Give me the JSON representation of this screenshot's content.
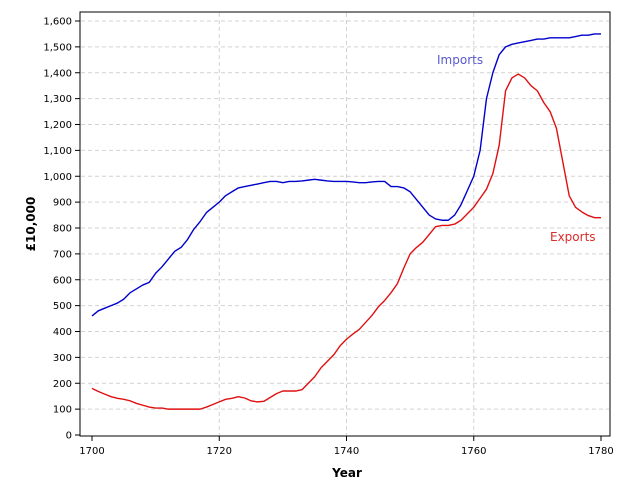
{
  "chart_data": {
    "type": "line",
    "title": "",
    "xlabel": "Year",
    "ylabel": "£10,000",
    "xlim": [
      1700,
      1780
    ],
    "ylim": [
      0,
      1600
    ],
    "xticks": [
      1700,
      1720,
      1740,
      1760,
      1780
    ],
    "yticks": [
      0,
      100,
      200,
      300,
      400,
      500,
      600,
      700,
      800,
      900,
      1000,
      1100,
      1200,
      1300,
      1400,
      1500,
      1600
    ],
    "xtick_labels": [
      "1700",
      "1720",
      "1740",
      "1760",
      "1780"
    ],
    "ytick_labels": [
      "0",
      "100",
      "200",
      "300",
      "400",
      "500",
      "600",
      "700",
      "800",
      "900",
      "1,000",
      "1,100",
      "1,200",
      "1,300",
      "1,400",
      "1,500",
      "1,600"
    ],
    "grid": true,
    "legend": "inline labels",
    "series": [
      {
        "name": "Imports",
        "color": "#0000cc",
        "label_color": "#5a5acc",
        "x": [
          1700,
          1701,
          1702,
          1703,
          1704,
          1705,
          1706,
          1707,
          1708,
          1709,
          1710,
          1711,
          1712,
          1713,
          1714,
          1715,
          1716,
          1717,
          1718,
          1719,
          1720,
          1721,
          1722,
          1723,
          1724,
          1725,
          1726,
          1727,
          1728,
          1729,
          1730,
          1731,
          1732,
          1733,
          1734,
          1735,
          1736,
          1737,
          1738,
          1739,
          1740,
          1741,
          1742,
          1743,
          1744,
          1745,
          1746,
          1747,
          1748,
          1749,
          1750,
          1751,
          1752,
          1753,
          1754,
          1755,
          1756,
          1757,
          1758,
          1759,
          1760,
          1761,
          1762,
          1763,
          1764,
          1765,
          1766,
          1767,
          1768,
          1769,
          1770,
          1771,
          1772,
          1773,
          1774,
          1775,
          1776,
          1777,
          1778,
          1779,
          1780
        ],
        "values": [
          460,
          480,
          490,
          500,
          510,
          525,
          550,
          565,
          580,
          590,
          625,
          650,
          680,
          710,
          725,
          755,
          795,
          825,
          860,
          880,
          900,
          925,
          940,
          955,
          960,
          965,
          970,
          975,
          980,
          980,
          975,
          980,
          980,
          982,
          985,
          988,
          985,
          982,
          980,
          980,
          980,
          978,
          975,
          975,
          978,
          980,
          980,
          960,
          960,
          955,
          940,
          910,
          880,
          850,
          835,
          830,
          830,
          850,
          890,
          945,
          1000,
          1100,
          1300,
          1400,
          1470,
          1500,
          1510,
          1515,
          1520,
          1525,
          1530,
          1530,
          1535,
          1535,
          1535,
          1535,
          1540,
          1545,
          1545,
          1550,
          1550
        ]
      },
      {
        "name": "Exports",
        "color": "#e01010",
        "label_color": "#dd2a2a",
        "x": [
          1700,
          1701,
          1702,
          1703,
          1704,
          1705,
          1706,
          1707,
          1708,
          1709,
          1710,
          1711,
          1712,
          1713,
          1714,
          1715,
          1716,
          1717,
          1718,
          1719,
          1720,
          1721,
          1722,
          1723,
          1724,
          1725,
          1726,
          1727,
          1728,
          1729,
          1730,
          1731,
          1732,
          1733,
          1734,
          1735,
          1736,
          1737,
          1738,
          1739,
          1740,
          1741,
          1742,
          1743,
          1744,
          1745,
          1746,
          1747,
          1748,
          1749,
          1750,
          1751,
          1752,
          1753,
          1754,
          1755,
          1756,
          1757,
          1758,
          1759,
          1760,
          1761,
          1762,
          1763,
          1764,
          1765,
          1766,
          1767,
          1768,
          1769,
          1770,
          1771,
          1772,
          1773,
          1774,
          1775,
          1776,
          1777,
          1778,
          1779,
          1780
        ],
        "values": [
          180,
          168,
          158,
          148,
          142,
          138,
          132,
          122,
          115,
          108,
          104,
          104,
          100,
          100,
          100,
          100,
          100,
          100,
          108,
          118,
          128,
          138,
          142,
          148,
          143,
          132,
          128,
          130,
          145,
          160,
          170,
          170,
          170,
          175,
          200,
          225,
          260,
          285,
          310,
          345,
          370,
          390,
          408,
          435,
          462,
          495,
          520,
          550,
          585,
          645,
          700,
          725,
          745,
          775,
          805,
          810,
          810,
          815,
          830,
          855,
          880,
          915,
          950,
          1010,
          1120,
          1330,
          1380,
          1395,
          1380,
          1350,
          1330,
          1285,
          1250,
          1185,
          1055,
          925,
          880,
          862,
          848,
          840,
          840
        ]
      }
    ]
  }
}
